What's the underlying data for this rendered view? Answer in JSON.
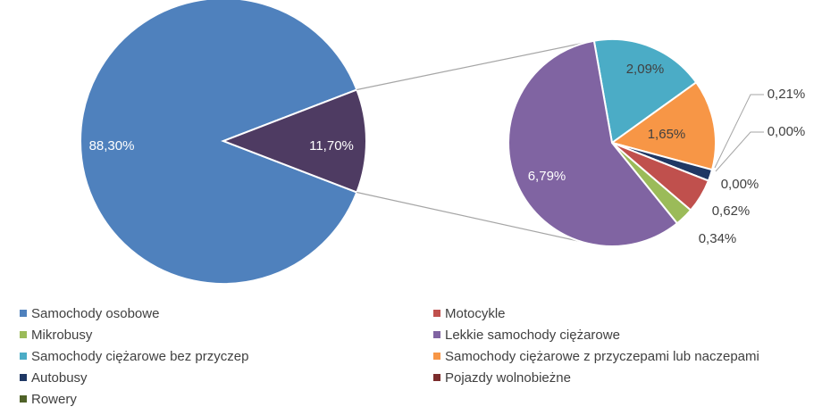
{
  "chart_data": {
    "type": "pie",
    "categories": [
      "Samochody osobowe",
      "Motocykle",
      "Mikrobusy",
      "Lekkie samochody ciężarowe",
      "Samochody ciężarowe bez przyczep",
      "Samochody ciężarowe z przyczepami lub naczepami",
      "Autobusy",
      "Pojazdy wolnobieżne",
      "Rowery"
    ],
    "values": [
      88.3,
      0.62,
      0.34,
      6.79,
      2.09,
      1.65,
      0.21,
      0.0,
      0.0
    ],
    "value_labels": [
      "88,30%",
      "0,62%",
      "0,34%",
      "6,79%",
      "2,09%",
      "1,65%",
      "0,21%",
      "0,00%",
      "0,00%"
    ],
    "colors": [
      "#4f81bd",
      "#c0504d",
      "#9bbb59",
      "#8064a2",
      "#4bacc6",
      "#f79646",
      "#1f3864",
      "#7b2c2c",
      "#4f6228"
    ],
    "other_value": 11.7,
    "other_value_label": "11,70%",
    "other_color": "#4e3b62"
  }
}
